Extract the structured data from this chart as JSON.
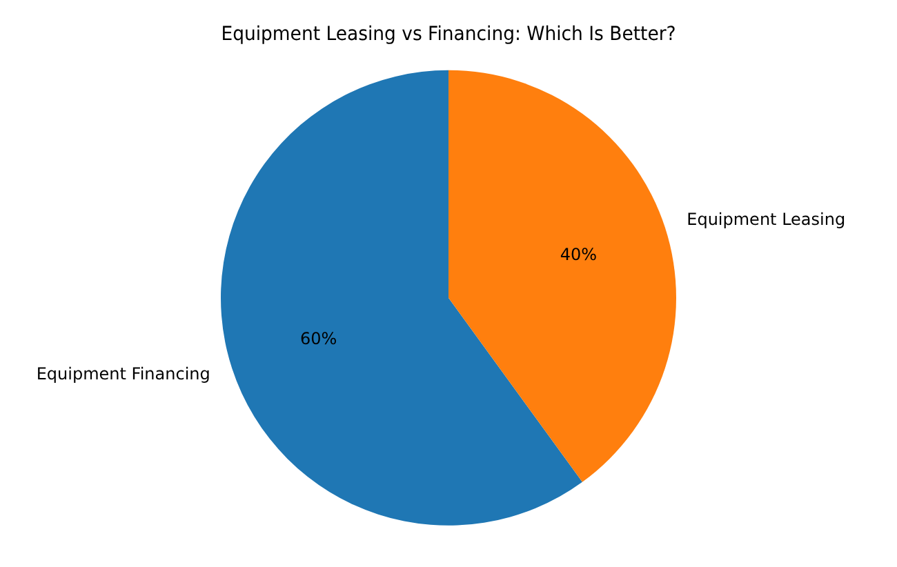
{
  "chart_data": {
    "type": "pie",
    "title": "Equipment Leasing vs Financing: Which Is Better?",
    "categories": [
      "Equipment Financing",
      "Equipment Leasing"
    ],
    "values": [
      60,
      40
    ],
    "colors": [
      "#1f77b4",
      "#ff7f0e"
    ],
    "value_labels": [
      "60%",
      "40%"
    ],
    "legend": false
  }
}
